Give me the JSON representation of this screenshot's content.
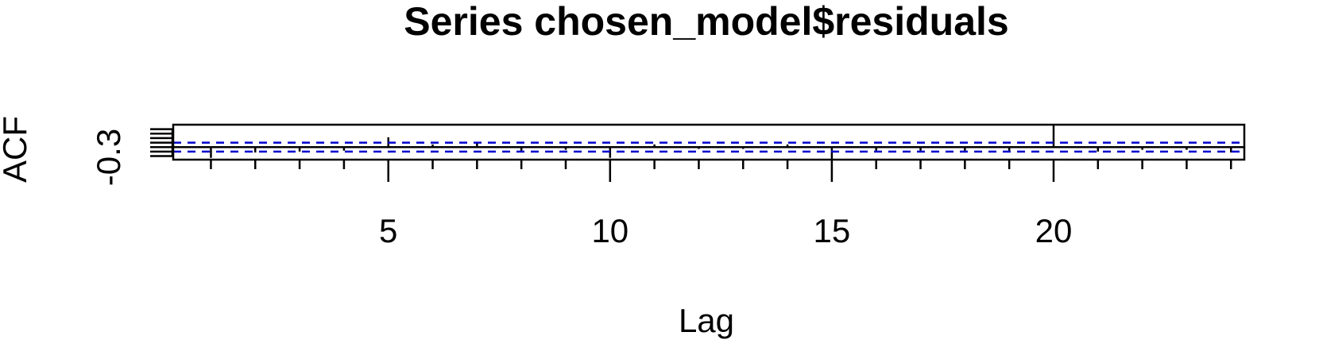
{
  "chart_data": {
    "type": "bar",
    "title": "Series  chosen_model$residuals",
    "xlabel": "Lag",
    "ylabel": "ACF",
    "x_ticks": [
      5,
      10,
      15,
      20
    ],
    "y_tick_label": "-0.3",
    "lags": [
      1,
      2,
      3,
      4,
      5,
      6,
      7,
      8,
      9,
      10,
      11,
      12,
      13,
      14,
      15,
      16,
      17,
      18,
      19,
      20,
      21,
      22,
      23,
      24
    ],
    "acf_values": [
      -0.12,
      -0.06,
      -0.05,
      -0.04,
      0.11,
      0.03,
      0.05,
      -0.05,
      -0.03,
      -0.12,
      0.03,
      -0.02,
      -0.02,
      0.03,
      -0.13,
      -0.04,
      -0.04,
      -0.04,
      -0.04,
      0.25,
      -0.05,
      -0.03,
      -0.03,
      -0.06
    ],
    "confidence_bound": 0.05,
    "zero_line": 0,
    "xlim": [
      0.15,
      24.3
    ],
    "ylim": [
      -0.14,
      0.25
    ],
    "colors": {
      "bars": "#000000",
      "confidence": "#0000cd",
      "axes": "#000000"
    },
    "grid": false,
    "legend": "none"
  }
}
